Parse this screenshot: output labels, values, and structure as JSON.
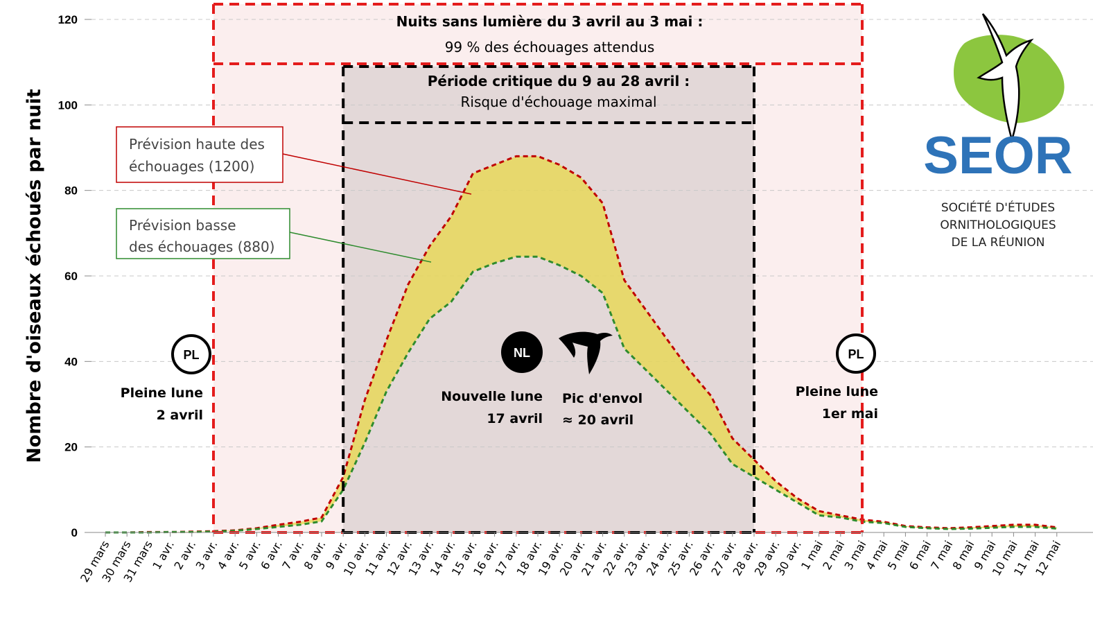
{
  "chart_data": {
    "type": "area",
    "ylabel": "Nombre d'oiseaux échoués par nuit",
    "xlabel": "",
    "ylim": [
      0,
      120
    ],
    "yticks": [
      0,
      20,
      40,
      60,
      80,
      100,
      120
    ],
    "grid": true,
    "categories": [
      "29 mars",
      "30 mars",
      "31 mars",
      "1 avr.",
      "2 avr.",
      "3 avr.",
      "4 avr.",
      "5 avr.",
      "6 avr.",
      "7 avr.",
      "8 avr.",
      "9 avr.",
      "10 avr.",
      "11 avr.",
      "12 avr.",
      "13 avr.",
      "14 avr.",
      "15 avr.",
      "16 avr.",
      "17 avr.",
      "18 avr.",
      "19 avr.",
      "20 avr.",
      "21 avr.",
      "22 avr.",
      "23 avr.",
      "24 avr.",
      "25 avr.",
      "26 avr.",
      "27 avr.",
      "28 avr.",
      "29 avr.",
      "30 avr.",
      "1 mai",
      "2 mai",
      "3 mai",
      "4 mai",
      "5 mai",
      "6 mai",
      "7 mai",
      "8 mai",
      "9 mai",
      "10 mai",
      "11 mai",
      "12 mai"
    ],
    "series": [
      {
        "name": "Prévision haute des échouages (1200)",
        "color": "#c00000",
        "values": [
          0,
          0,
          0.1,
          0.1,
          0.2,
          0.3,
          0.5,
          1.0,
          1.8,
          2.5,
          3.5,
          13,
          31,
          45,
          58,
          67,
          74,
          84,
          86,
          88,
          88,
          86,
          83,
          77,
          59,
          52,
          45,
          38,
          32,
          22,
          17,
          12,
          8,
          5,
          4,
          3,
          2.5,
          1.5,
          1.2,
          1.0,
          1.2,
          1.5,
          1.8,
          1.8,
          1.2
        ]
      },
      {
        "name": "Prévision basse des échouages (880)",
        "color": "#2e8b2e",
        "values": [
          0,
          0,
          0,
          0.1,
          0.1,
          0.2,
          0.4,
          0.8,
          1.3,
          1.8,
          2.6,
          10,
          21,
          33,
          42,
          50,
          54,
          61,
          63,
          64.5,
          64.5,
          62.5,
          60,
          56,
          43,
          38,
          33,
          28,
          23,
          16,
          13,
          10,
          7,
          4,
          3.5,
          2.5,
          2.2,
          1.3,
          1.0,
          0.8,
          0.9,
          1.1,
          1.3,
          1.3,
          0.9
        ]
      }
    ],
    "fill_color": "#e8d84a",
    "regions": {
      "dark_light": {
        "start": "3 avr.",
        "end": "3 mai",
        "title": "Nuits sans lumière du 3 avril au 3 mai :",
        "subtitle": "99 % des échouages attendus"
      },
      "critical": {
        "start": "9 avr.",
        "end": "28 avr.",
        "title": "Période critique du 9 au 28 avril :",
        "subtitle": "Risque d'échouage maximal"
      }
    },
    "annotations": {
      "high": {
        "line1": "Prévision haute des",
        "line2": "échouages (1200)"
      },
      "low": {
        "line1": "Prévision basse",
        "line2": "des échouages (880)"
      }
    },
    "moons": [
      {
        "badge": "PL",
        "line1": "Pleine lune",
        "line2": "2 avril"
      },
      {
        "badge": "NL",
        "line1": "Nouvelle lune",
        "line2": "17 avril"
      },
      {
        "badge": "PL",
        "line1": "Pleine lune",
        "line2": "1er mai"
      }
    ],
    "peak": {
      "line1": "Pic d'envol",
      "line2": "≈ 20 avril"
    }
  },
  "logo": {
    "name": "SEOR",
    "line1": "SOCIÉTÉ D'ÉTUDES",
    "line2": "ORNITHOLOGIQUES",
    "line3": "DE LA RÉUNION"
  }
}
